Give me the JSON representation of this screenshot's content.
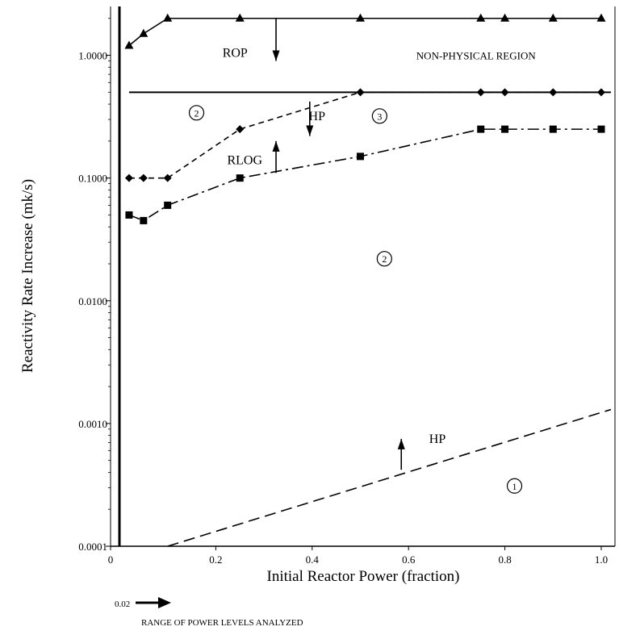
{
  "chart_data": {
    "type": "line",
    "xlabel": "Initial Reactor Power (fraction)",
    "ylabel": "Reactivity Rate Increase (mk/s)",
    "xlim": [
      0,
      1.02
    ],
    "ylim": [
      0.0001,
      2.5
    ],
    "yscale": "log",
    "xticks": [
      0,
      0.2,
      0.4,
      0.6,
      0.8,
      1.0
    ],
    "xtick_labels": [
      "0",
      "0.2",
      "0.4",
      "0.6",
      "0.8",
      "1.0"
    ],
    "yticks": [
      0.0001,
      0.001,
      0.01,
      0.1,
      1.0
    ],
    "ytick_labels": [
      "0.0001",
      "0.0010",
      "0.0100",
      "0.1000",
      "1.0000"
    ],
    "grid": false,
    "series": [
      {
        "key": "rop",
        "marker": "triangle",
        "line_style": "solid",
        "x": [
          0.02,
          0.05,
          0.1,
          0.25,
          0.5,
          0.75,
          0.8,
          0.9,
          1.0
        ],
        "y": [
          1.2,
          1.5,
          2.0,
          2.0,
          2.0,
          2.0,
          2.0,
          2.0,
          2.0
        ]
      },
      {
        "key": "non_physical_boundary",
        "marker": "none",
        "line_style": "solid",
        "x": [
          0.02,
          1.02
        ],
        "y": [
          0.5,
          0.5
        ]
      },
      {
        "key": "hp_upper",
        "marker": "diamond",
        "line_style": "dashed",
        "x": [
          0.02,
          0.05,
          0.1,
          0.25,
          0.5,
          0.75,
          0.8,
          0.9,
          1.0
        ],
        "y": [
          0.1,
          0.1,
          0.1,
          0.25,
          0.5,
          0.5,
          0.5,
          0.5,
          0.5
        ]
      },
      {
        "key": "rlog",
        "marker": "square",
        "line_style": "dash-dot",
        "x": [
          0.02,
          0.05,
          0.1,
          0.25,
          0.5,
          0.75,
          0.8,
          0.9,
          1.0
        ],
        "y": [
          0.05,
          0.045,
          0.06,
          0.1,
          0.15,
          0.25,
          0.25,
          0.25,
          0.25
        ]
      },
      {
        "key": "hp_lower",
        "marker": "none",
        "line_style": "long-dash",
        "x": [
          0.1,
          1.02
        ],
        "y": [
          0.0001,
          0.0013
        ]
      }
    ],
    "annotations": {
      "rop": {
        "text": "ROP",
        "x": 0.24,
        "y": 1.05
      },
      "non_physical": {
        "text": "NON-PHYSICAL REGION",
        "x": 0.74,
        "y": 1.0
      },
      "hp_upper": {
        "text": "HP",
        "x": 0.41,
        "y": 0.32
      },
      "rlog": {
        "text": "RLOG",
        "x": 0.26,
        "y": 0.14
      },
      "hp_lower": {
        "text": "HP",
        "x": 0.66,
        "y": 0.00075
      },
      "region_2_top": {
        "text": "2",
        "x": 0.16,
        "y": 0.34
      },
      "region_3": {
        "text": "3",
        "x": 0.54,
        "y": 0.32
      },
      "region_2_mid": {
        "text": "2",
        "x": 0.55,
        "y": 0.022
      },
      "region_1": {
        "text": "1",
        "x": 0.82,
        "y": 0.00031
      }
    },
    "arrows": [
      {
        "x": 0.325,
        "y_from": 2.0,
        "y_to": 0.9
      },
      {
        "x": 0.395,
        "y_from": 0.42,
        "y_to": 0.22
      },
      {
        "x": 0.325,
        "y_from": 0.11,
        "y_to": 0.2
      },
      {
        "x": 0.585,
        "y_from": 0.00042,
        "y_to": 0.00075
      }
    ],
    "footnote": {
      "start_label": "0.02",
      "text": "RANGE OF POWER LEVELS ANALYZED"
    }
  }
}
